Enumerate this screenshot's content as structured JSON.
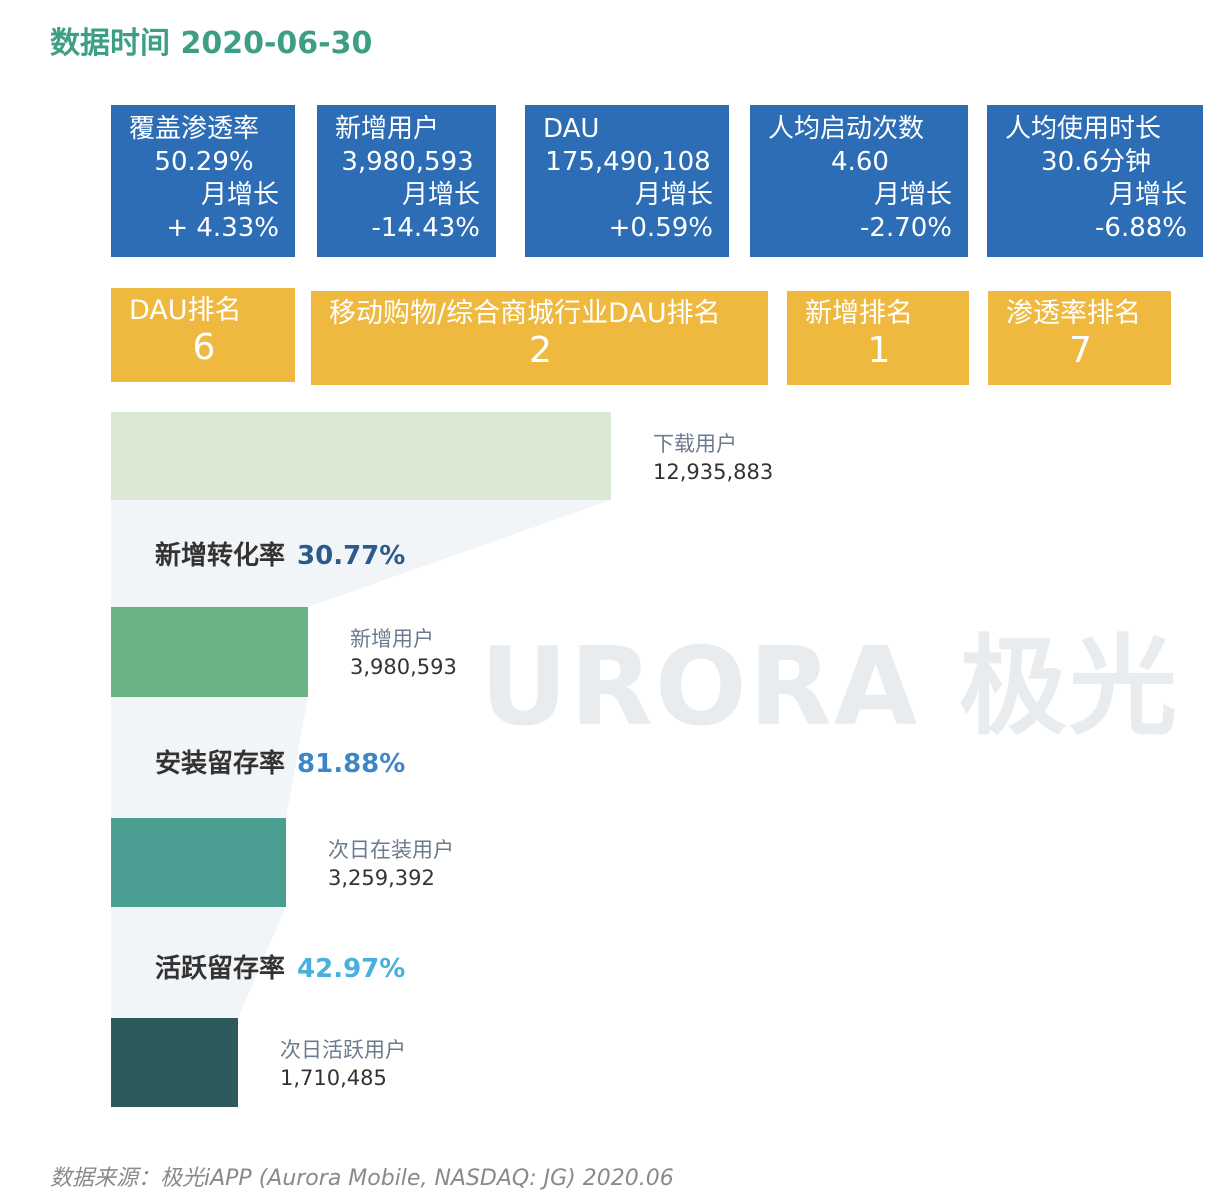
{
  "title": "数据时间 2020-06-30",
  "kpis": [
    {
      "label": "覆盖渗透率",
      "value": "50.29%",
      "growth_label": "月增长",
      "growth": "+ 4.33%"
    },
    {
      "label": "新增用户",
      "value": "3,980,593",
      "growth_label": "月增长",
      "growth": "-14.43%"
    },
    {
      "label": "DAU",
      "value": "175,490,108",
      "growth_label": "月增长",
      "growth": "+0.59%"
    },
    {
      "label": "人均启动次数",
      "value": "4.60",
      "growth_label": "月增长",
      "growth": "-2.70%"
    },
    {
      "label": "人均使用时长",
      "value": "30.6分钟",
      "growth_label": "月增长",
      "growth": "-6.88%"
    }
  ],
  "ranks": [
    {
      "label": "DAU排名",
      "value": "6"
    },
    {
      "label": "移动购物/综合商城行业DAU排名",
      "value": "2"
    },
    {
      "label": "新增排名",
      "value": "1"
    },
    {
      "label": "渗透率排名",
      "value": "7"
    }
  ],
  "watermark": "URORA 极光",
  "source": "数据来源：极光iAPP (Aurora Mobile, NASDAQ: JG) 2020.06",
  "colors": {
    "title": "#3c9e85",
    "kpi_bg": "#2d6db6",
    "rank_bg": "#efb940",
    "bar1": "#dbe9d4",
    "bar2": "#6bb287",
    "bar3": "#4a9e92",
    "bar4": "#2d5a5c",
    "rate1": "#2d5a8c",
    "rate2": "#3d87c8",
    "rate3": "#47b0dc"
  },
  "chart_data": {
    "type": "bar",
    "orientation": "horizontal-funnel",
    "categories": [
      "下载用户",
      "新增用户",
      "次日在装用户",
      "次日活跃用户"
    ],
    "values": [
      12935883,
      3980593,
      3259392,
      1710485
    ],
    "value_labels": [
      "12,935,883",
      "3,980,593",
      "3,259,392",
      "1,710,485"
    ],
    "rates": [
      {
        "label": "新增转化率",
        "value": "30.77%"
      },
      {
        "label": "安装留存率",
        "value": "81.88%"
      },
      {
        "label": "活跃留存率",
        "value": "42.97%"
      }
    ]
  }
}
